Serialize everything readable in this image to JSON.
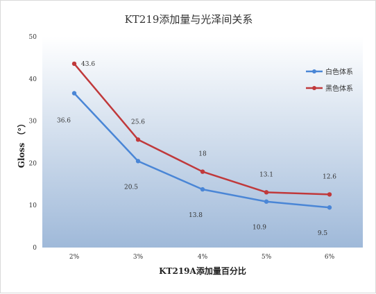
{
  "chart_data": {
    "type": "line",
    "title": "KT219添加量与光泽间关系",
    "xlabel": "KT219A添加量百分比",
    "ylabel": "Gloss （°）",
    "categories": [
      "2%",
      "3%",
      "4%",
      "5%",
      "6%"
    ],
    "ylim": [
      0,
      50
    ],
    "yticks": [
      "0",
      "10",
      "20",
      "30",
      "40",
      "50"
    ],
    "grid": false,
    "legend_position": "right",
    "series": [
      {
        "name": "白色体系",
        "color": "#4a86d6",
        "values": [
          36.6,
          20.5,
          13.8,
          10.9,
          9.5
        ],
        "labels": [
          "36.6",
          "20.5",
          "13.8",
          "10.9",
          "9.5"
        ]
      },
      {
        "name": "黑色体系",
        "color": "#c0393b",
        "values": [
          43.6,
          25.6,
          18,
          13.1,
          12.6
        ],
        "labels": [
          "43.6",
          "25.6",
          "18",
          "13.1",
          "12.6"
        ]
      }
    ]
  }
}
